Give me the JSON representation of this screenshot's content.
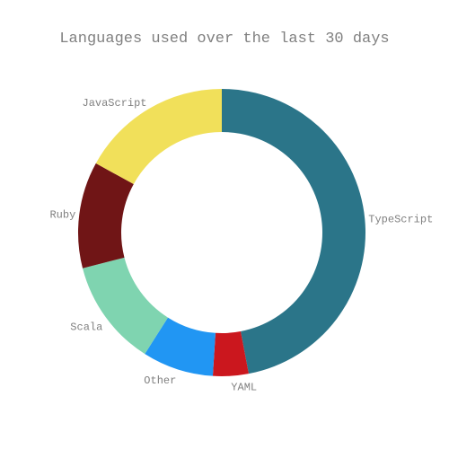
{
  "chart_data": {
    "type": "pie",
    "title": "Languages used over the last 30 days",
    "hole": true,
    "slices": [
      {
        "label": "TypeScript",
        "value": 47.0,
        "color": "#2b7589"
      },
      {
        "label": "YAML",
        "value": 4.0,
        "color": "#cb171e"
      },
      {
        "label": "Other",
        "value": 8.0,
        "color": "#2196f3"
      },
      {
        "label": "Scala",
        "value": 12.0,
        "color": "#7fd4b0"
      },
      {
        "label": "Ruby",
        "value": 12.0,
        "color": "#701516"
      },
      {
        "label": "JavaScript",
        "value": 17.0,
        "color": "#f1e05a"
      }
    ],
    "legend": "none",
    "labels": "outside"
  }
}
